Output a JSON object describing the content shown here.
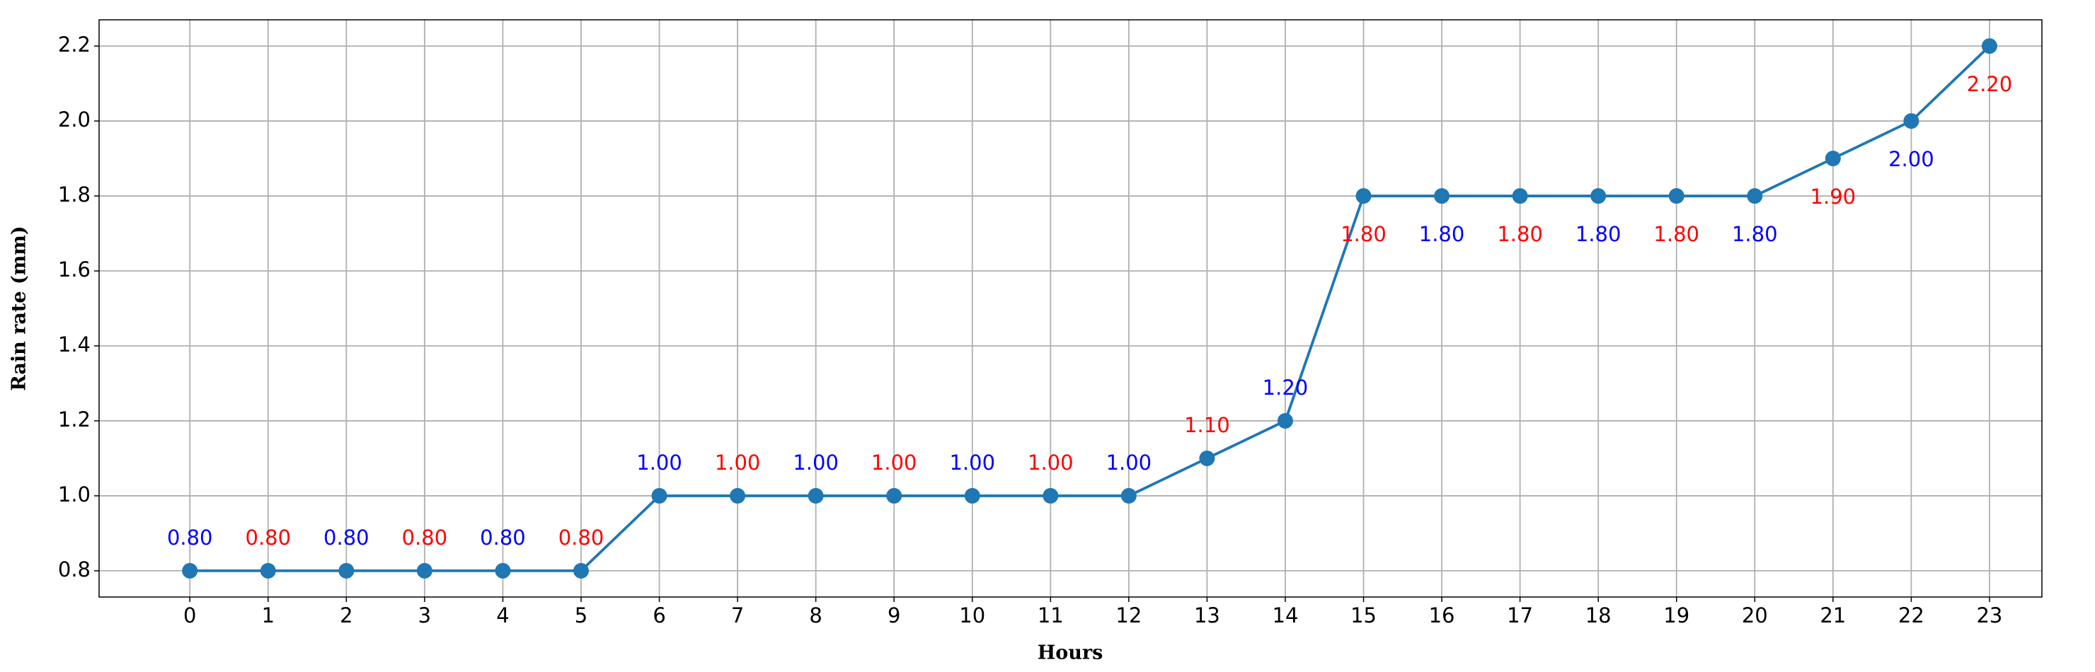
{
  "chart_data": {
    "type": "line",
    "x_label": "Hours",
    "y_label": "Rain rate (mm)",
    "x": [
      0,
      1,
      2,
      3,
      4,
      5,
      6,
      7,
      8,
      9,
      10,
      11,
      12,
      13,
      14,
      15,
      16,
      17,
      18,
      19,
      20,
      21,
      22,
      23
    ],
    "values": [
      0.8,
      0.8,
      0.8,
      0.8,
      0.8,
      0.8,
      1.0,
      1.0,
      1.0,
      1.0,
      1.0,
      1.0,
      1.0,
      1.1,
      1.2,
      1.8,
      1.8,
      1.8,
      1.8,
      1.8,
      1.8,
      1.9,
      2.0,
      2.2
    ],
    "value_labels": [
      "0.80",
      "0.80",
      "0.80",
      "0.80",
      "0.80",
      "0.80",
      "1.00",
      "1.00",
      "1.00",
      "1.00",
      "1.00",
      "1.00",
      "1.00",
      "1.10",
      "1.20",
      "1.80",
      "1.80",
      "1.80",
      "1.80",
      "1.80",
      "1.80",
      "1.90",
      "2.00",
      "2.20"
    ],
    "value_label_colors": [
      "blue",
      "red"
    ],
    "color": "#1f77b4",
    "xlim": [
      -1.16,
      23.67
    ],
    "ylim": [
      0.73,
      2.27
    ],
    "xticks": [
      0,
      1,
      2,
      3,
      4,
      5,
      6,
      7,
      8,
      9,
      10,
      11,
      12,
      13,
      14,
      15,
      16,
      17,
      18,
      19,
      20,
      21,
      22,
      23
    ],
    "yticks": [
      0.8,
      {
        "value": 1,
        "label": "1.0"
      },
      1.2,
      1.4,
      1.6,
      1.8,
      {
        "value": 2,
        "label": "2.0"
      },
      2.2
    ],
    "grid": true
  }
}
